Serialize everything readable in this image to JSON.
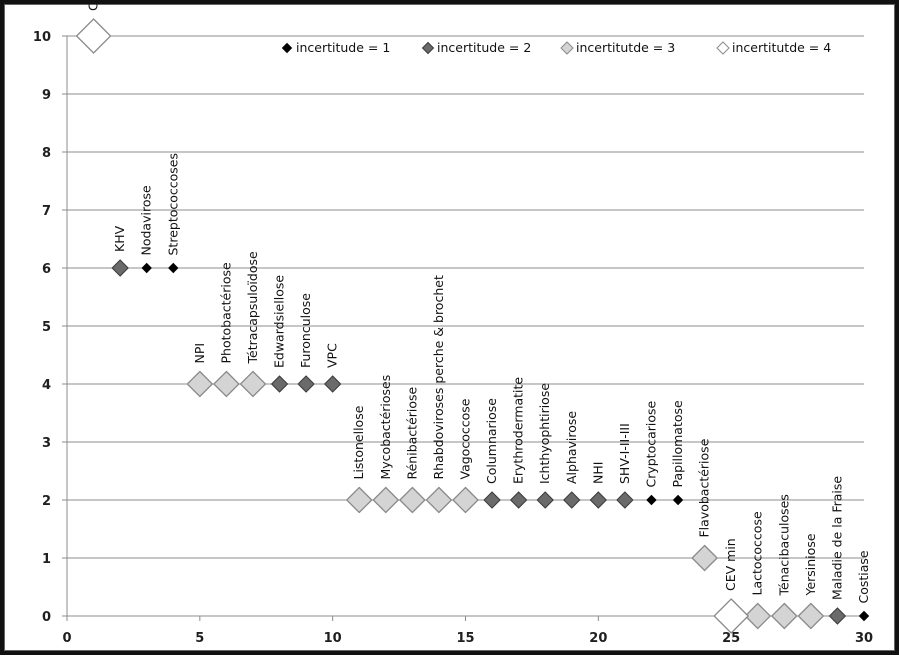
{
  "chart_data": {
    "type": "scatter",
    "title": "",
    "xlabel": "",
    "ylabel": "",
    "xlim": [
      0,
      30
    ],
    "ylim": [
      0,
      10
    ],
    "x_ticks": [
      0,
      5,
      10,
      15,
      20,
      25,
      30
    ],
    "y_ticks": [
      0,
      1,
      2,
      3,
      4,
      5,
      6,
      7,
      8,
      9,
      10
    ],
    "grid": "horizontal",
    "legend_position": "top-right",
    "series": [
      {
        "name": "incertitude = 1",
        "marker": "diamond",
        "size": "small",
        "fill": "#000000",
        "stroke": "#000000",
        "points": [
          {
            "x": 3,
            "y": 6,
            "label": "Nodavirose"
          },
          {
            "x": 4,
            "y": 6,
            "label": "Streptococcoses"
          },
          {
            "x": 22,
            "y": 2,
            "label": "Cryptocariose"
          },
          {
            "x": 23,
            "y": 2,
            "label": "Papillomatose"
          },
          {
            "x": 30,
            "y": 0,
            "label": "Costiase"
          }
        ]
      },
      {
        "name": "incertitude = 2",
        "marker": "diamond",
        "size": "medium",
        "fill": "#6a6a6a",
        "stroke": "#3a3a3a",
        "points": [
          {
            "x": 2,
            "y": 6,
            "label": "KHV"
          },
          {
            "x": 8,
            "y": 4,
            "label": "Edwardsiellose"
          },
          {
            "x": 9,
            "y": 4,
            "label": "Furonculose"
          },
          {
            "x": 10,
            "y": 4,
            "label": "VPC"
          },
          {
            "x": 16,
            "y": 2,
            "label": "Columnariose"
          },
          {
            "x": 17,
            "y": 2,
            "label": "Erythrodermatite"
          },
          {
            "x": 18,
            "y": 2,
            "label": "Ichthyophtiriose"
          },
          {
            "x": 19,
            "y": 2,
            "label": "Alphavirose"
          },
          {
            "x": 20,
            "y": 2,
            "label": "NHI"
          },
          {
            "x": 21,
            "y": 2,
            "label": "SHV-I-II-III"
          },
          {
            "x": 29,
            "y": 0,
            "label": "Maladie de la Fraise"
          }
        ]
      },
      {
        "name": "incertitutde = 3",
        "marker": "diamond",
        "size": "large",
        "fill": "#d4d4d4",
        "stroke": "#8a8a8a",
        "points": [
          {
            "x": 5,
            "y": 4,
            "label": "NPI"
          },
          {
            "x": 6,
            "y": 4,
            "label": "Photobactériose"
          },
          {
            "x": 7,
            "y": 4,
            "label": "Tétracapsuloïdose"
          },
          {
            "x": 11,
            "y": 2,
            "label": "Listonellose"
          },
          {
            "x": 12,
            "y": 2,
            "label": "Mycobactérioses"
          },
          {
            "x": 13,
            "y": 2,
            "label": "Rénibactériose"
          },
          {
            "x": 14,
            "y": 2,
            "label": "Rhabdoviroses perche & brochet"
          },
          {
            "x": 15,
            "y": 2,
            "label": "Vagococcose"
          },
          {
            "x": 24,
            "y": 1,
            "label": "Flavobactériose"
          },
          {
            "x": 26,
            "y": 0,
            "label": "Lactococcose"
          },
          {
            "x": 27,
            "y": 0,
            "label": "Ténacibaculoses"
          },
          {
            "x": 28,
            "y": 0,
            "label": "Yersiniose"
          }
        ]
      },
      {
        "name": "incertitutde = 4",
        "marker": "diamond",
        "size": "xlarge",
        "fill": "#ffffff",
        "stroke": "#8a8a8a",
        "points": [
          {
            "x": 1,
            "y": 10,
            "label": "CEV max"
          },
          {
            "x": 25,
            "y": 0,
            "label": "CEV min"
          }
        ]
      }
    ]
  }
}
